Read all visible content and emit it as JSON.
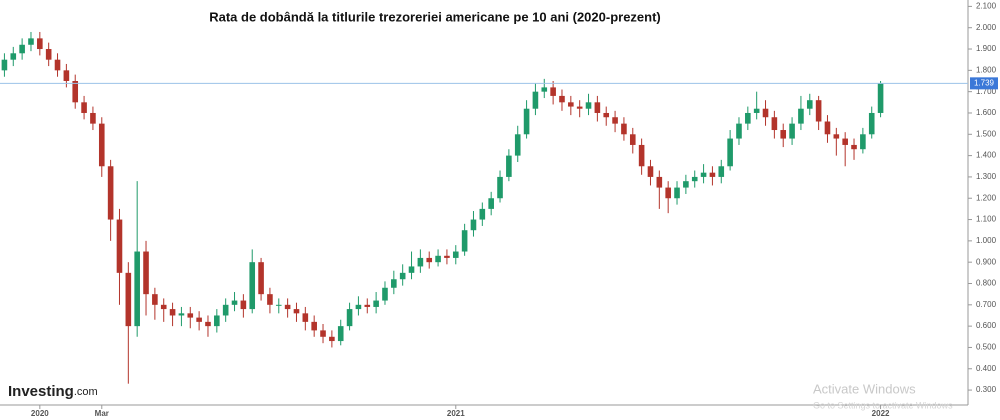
{
  "chart_data": {
    "type": "candlestick",
    "title": "Rata de dobândă la titlurile trezoreriei americane pe 10 ani (2020-prezent)",
    "categories": [
      null,
      null,
      null,
      null,
      "2020",
      null,
      null,
      null,
      null,
      null,
      null,
      "Mar",
      null,
      null,
      null,
      null,
      null,
      null,
      null,
      null,
      null,
      null,
      null,
      null,
      null,
      null,
      null,
      null,
      null,
      null,
      null,
      null,
      null,
      null,
      null,
      null,
      null,
      null,
      null,
      null,
      null,
      null,
      null,
      null,
      null,
      null,
      null,
      null,
      null,
      null,
      null,
      "2021",
      null,
      null,
      null,
      null,
      null,
      null,
      null,
      null,
      null,
      null,
      null,
      null,
      null,
      null,
      null,
      null,
      null,
      null,
      null,
      null,
      null,
      null,
      null,
      null,
      null,
      null,
      null,
      null,
      null,
      null,
      null,
      null,
      null,
      null,
      null,
      null,
      null,
      null,
      null,
      null,
      null,
      null,
      null,
      null,
      null,
      null,
      null,
      "2022"
    ],
    "open": [
      1.8,
      1.85,
      1.88,
      1.92,
      1.95,
      1.9,
      1.85,
      1.8,
      1.75,
      1.65,
      1.6,
      1.55,
      1.35,
      1.1,
      0.85,
      0.6,
      0.95,
      0.75,
      0.7,
      0.68,
      0.65,
      0.66,
      0.64,
      0.62,
      0.6,
      0.65,
      0.7,
      0.72,
      0.68,
      0.9,
      0.75,
      0.7,
      0.7,
      0.68,
      0.66,
      0.62,
      0.58,
      0.55,
      0.53,
      0.6,
      0.68,
      0.7,
      0.69,
      0.72,
      0.78,
      0.82,
      0.85,
      0.88,
      0.92,
      0.9,
      0.93,
      0.92,
      0.95,
      1.05,
      1.1,
      1.15,
      1.2,
      1.3,
      1.4,
      1.5,
      1.62,
      1.7,
      1.72,
      1.68,
      1.65,
      1.63,
      1.62,
      1.65,
      1.6,
      1.58,
      1.55,
      1.5,
      1.45,
      1.35,
      1.3,
      1.25,
      1.2,
      1.25,
      1.28,
      1.3,
      1.32,
      1.3,
      1.35,
      1.48,
      1.55,
      1.6,
      1.62,
      1.58,
      1.52,
      1.48,
      1.55,
      1.62,
      1.66,
      1.56,
      1.5,
      1.48,
      1.45,
      1.43,
      1.5,
      1.6
    ],
    "high": [
      1.88,
      1.91,
      1.95,
      1.98,
      1.98,
      1.93,
      1.88,
      1.83,
      1.78,
      1.68,
      1.63,
      1.58,
      1.38,
      1.15,
      0.9,
      1.28,
      1.0,
      0.78,
      0.73,
      0.71,
      0.69,
      0.69,
      0.67,
      0.65,
      0.68,
      0.73,
      0.76,
      0.75,
      0.96,
      0.92,
      0.78,
      0.73,
      0.73,
      0.71,
      0.69,
      0.65,
      0.61,
      0.58,
      0.63,
      0.71,
      0.74,
      0.73,
      0.76,
      0.81,
      0.86,
      0.89,
      0.95,
      0.96,
      0.95,
      0.96,
      0.96,
      0.98,
      1.08,
      1.14,
      1.18,
      1.23,
      1.33,
      1.43,
      1.54,
      1.66,
      1.74,
      1.76,
      1.75,
      1.71,
      1.68,
      1.66,
      1.69,
      1.68,
      1.63,
      1.61,
      1.58,
      1.53,
      1.48,
      1.38,
      1.33,
      1.28,
      1.28,
      1.31,
      1.33,
      1.36,
      1.35,
      1.38,
      1.52,
      1.58,
      1.63,
      1.7,
      1.66,
      1.61,
      1.55,
      1.58,
      1.68,
      1.69,
      1.68,
      1.59,
      1.53,
      1.51,
      1.48,
      1.53,
      1.63,
      1.75
    ],
    "low": [
      1.77,
      1.82,
      1.85,
      1.89,
      1.87,
      1.82,
      1.77,
      1.72,
      1.62,
      1.57,
      1.52,
      1.3,
      1.0,
      0.7,
      0.33,
      0.55,
      0.65,
      0.63,
      0.62,
      0.6,
      0.6,
      0.59,
      0.58,
      0.55,
      0.57,
      0.62,
      0.67,
      0.64,
      0.66,
      0.72,
      0.66,
      0.66,
      0.64,
      0.62,
      0.58,
      0.55,
      0.52,
      0.5,
      0.51,
      0.58,
      0.65,
      0.66,
      0.66,
      0.7,
      0.75,
      0.79,
      0.82,
      0.85,
      0.87,
      0.88,
      0.89,
      0.89,
      0.93,
      1.02,
      1.07,
      1.12,
      1.18,
      1.28,
      1.37,
      1.48,
      1.59,
      1.67,
      1.64,
      1.61,
      1.59,
      1.58,
      1.59,
      1.56,
      1.54,
      1.51,
      1.47,
      1.41,
      1.31,
      1.26,
      1.15,
      1.13,
      1.17,
      1.22,
      1.25,
      1.27,
      1.26,
      1.27,
      1.33,
      1.45,
      1.52,
      1.57,
      1.54,
      1.48,
      1.44,
      1.45,
      1.52,
      1.59,
      1.52,
      1.46,
      1.4,
      1.35,
      1.38,
      1.41,
      1.48,
      1.58
    ],
    "close": [
      1.85,
      1.88,
      1.92,
      1.95,
      1.9,
      1.85,
      1.8,
      1.75,
      1.65,
      1.6,
      1.55,
      1.35,
      1.1,
      0.85,
      0.6,
      0.95,
      0.75,
      0.7,
      0.68,
      0.65,
      0.66,
      0.64,
      0.62,
      0.6,
      0.65,
      0.7,
      0.72,
      0.68,
      0.9,
      0.75,
      0.7,
      0.7,
      0.68,
      0.66,
      0.62,
      0.58,
      0.55,
      0.53,
      0.6,
      0.68,
      0.7,
      0.69,
      0.72,
      0.78,
      0.82,
      0.85,
      0.88,
      0.92,
      0.9,
      0.93,
      0.92,
      0.95,
      1.05,
      1.1,
      1.15,
      1.2,
      1.3,
      1.4,
      1.5,
      1.62,
      1.7,
      1.72,
      1.68,
      1.65,
      1.63,
      1.62,
      1.65,
      1.6,
      1.58,
      1.55,
      1.5,
      1.45,
      1.35,
      1.3,
      1.25,
      1.2,
      1.25,
      1.28,
      1.3,
      1.32,
      1.3,
      1.35,
      1.48,
      1.55,
      1.6,
      1.62,
      1.58,
      1.52,
      1.48,
      1.55,
      1.62,
      1.66,
      1.56,
      1.5,
      1.48,
      1.45,
      1.43,
      1.5,
      1.6,
      1.739
    ],
    "up_color": "#1f9a6a",
    "down_color": "#b3342b",
    "last_price_color": "#3b78d8",
    "ylim": [
      0.23,
      2.13
    ],
    "yticks": [
      {
        "value": 0.3,
        "label": "0.300"
      },
      {
        "value": 0.4,
        "label": "0.400"
      },
      {
        "value": 0.5,
        "label": "0.500"
      },
      {
        "value": 0.6,
        "label": "0.600"
      },
      {
        "value": 0.7,
        "label": "0.700"
      },
      {
        "value": 0.8,
        "label": "0.800"
      },
      {
        "value": 0.9,
        "label": "0.900"
      },
      {
        "value": 1.0,
        "label": "1.000"
      },
      {
        "value": 1.1,
        "label": "1.100"
      },
      {
        "value": 1.2,
        "label": "1.200"
      },
      {
        "value": 1.3,
        "label": "1.300"
      },
      {
        "value": 1.4,
        "label": "1.400"
      },
      {
        "value": 1.5,
        "label": "1.500"
      },
      {
        "value": 1.6,
        "label": "1.600"
      },
      {
        "value": 1.7,
        "label": "1.700"
      },
      {
        "value": 1.8,
        "label": "1.800"
      },
      {
        "value": 1.9,
        "label": "1.900"
      },
      {
        "value": 2.0,
        "label": "2.000"
      },
      {
        "value": 2.1,
        "label": "2.100"
      }
    ],
    "grid": false
  },
  "branding": {
    "name": "Investing",
    "suffix": ".com"
  },
  "watermark": {
    "title": "Activate Windows",
    "subtitle": "Go to Settings to activate Windows"
  }
}
